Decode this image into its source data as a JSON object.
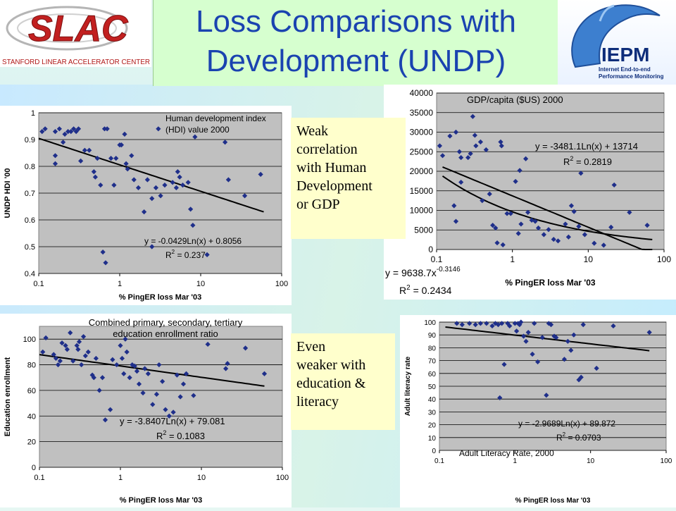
{
  "title": {
    "line1": "Loss Comparisons with",
    "line2": "Development (UNDP)"
  },
  "logo_left": {
    "wordmark": "SLAC",
    "subtitle": "STANFORD LINEAR ACCELERATOR CENTER"
  },
  "logo_right": {
    "wordmark": "IEPM",
    "subtitle_lines": [
      "Internet End-to-end",
      "Performance Monitoring"
    ]
  },
  "notes": {
    "weak": [
      "Weak",
      "correlation",
      "with Human",
      "Development",
      "or GDP"
    ],
    "weaker": [
      "Even",
      "weaker with",
      "education &",
      "literacy"
    ]
  },
  "colors": {
    "title": "#1a43b0",
    "marker": "#1f2f8a",
    "plot_bg": "#c0c0c0",
    "note_bg": "#ffffcc",
    "title_bg": "#d6ffcf"
  },
  "chart_data": [
    {
      "id": "hdi",
      "type": "scatter",
      "title": "Human development index (HDI) value 2000",
      "title_lines": [
        "Human development index",
        "(HDI) value 2000"
      ],
      "xlabel": "% PingER loss Mar '03",
      "ylabel": "UNDP HDI '00",
      "x_scale": "log",
      "xlim": [
        0.1,
        100
      ],
      "ylim": [
        0.4,
        1.0
      ],
      "x_ticks": [
        "0.1",
        "1",
        "10",
        "100"
      ],
      "y_ticks": [
        "0.4",
        "0.5",
        "0.6",
        "0.7",
        "0.8",
        "0.9",
        "1"
      ],
      "grid": true,
      "trendline": {
        "type": "log",
        "a": -0.0429,
        "b": 0.8056,
        "range": [
          0.1,
          60
        ]
      },
      "equation": "y = -0.0429Ln(x) + 0.8056",
      "r2": "R2 = 0.237",
      "points": [
        [
          0.11,
          0.93
        ],
        [
          0.12,
          0.94
        ],
        [
          0.16,
          0.93
        ],
        [
          0.16,
          0.81
        ],
        [
          0.16,
          0.84
        ],
        [
          0.18,
          0.94
        ],
        [
          0.2,
          0.89
        ],
        [
          0.21,
          0.92
        ],
        [
          0.23,
          0.93
        ],
        [
          0.25,
          0.93
        ],
        [
          0.27,
          0.94
        ],
        [
          0.29,
          0.93
        ],
        [
          0.31,
          0.94
        ],
        [
          0.33,
          0.82
        ],
        [
          0.37,
          0.86
        ],
        [
          0.42,
          0.86
        ],
        [
          0.48,
          0.78
        ],
        [
          0.5,
          0.76
        ],
        [
          0.53,
          0.83
        ],
        [
          0.58,
          0.73
        ],
        [
          0.62,
          0.48
        ],
        [
          0.65,
          0.94
        ],
        [
          0.7,
          0.94
        ],
        [
          0.78,
          0.83
        ],
        [
          0.85,
          0.73
        ],
        [
          0.9,
          0.83
        ],
        [
          1.0,
          0.88
        ],
        [
          1.05,
          0.88
        ],
        [
          1.15,
          0.92
        ],
        [
          1.2,
          0.81
        ],
        [
          1.25,
          0.79
        ],
        [
          1.4,
          0.84
        ],
        [
          1.5,
          0.75
        ],
        [
          1.7,
          0.72
        ],
        [
          2.0,
          0.63
        ],
        [
          2.2,
          0.75
        ],
        [
          2.5,
          0.68
        ],
        [
          2.8,
          0.72
        ],
        [
          3.0,
          0.94
        ],
        [
          3.2,
          0.69
        ],
        [
          3.6,
          0.73
        ],
        [
          4.5,
          0.74
        ],
        [
          5.0,
          0.72
        ],
        [
          5.5,
          0.76
        ],
        [
          5.2,
          0.78
        ],
        [
          6.0,
          0.73
        ],
        [
          7.0,
          0.74
        ],
        [
          7.5,
          0.64
        ],
        [
          8.0,
          0.58
        ],
        [
          8.5,
          0.91
        ],
        [
          12.0,
          0.47
        ],
        [
          20.0,
          0.89
        ],
        [
          22.0,
          0.75
        ],
        [
          35.0,
          0.69
        ],
        [
          55.0,
          0.77
        ],
        [
          0.67,
          0.44
        ],
        [
          2.5,
          0.5
        ]
      ]
    },
    {
      "id": "gdp",
      "type": "scatter",
      "title": "GDP/capita ($US) 2000",
      "xlabel": "% PingER loss Mar '03",
      "ylabel": "",
      "x_scale": "log",
      "xlim": [
        0.1,
        100
      ],
      "ylim": [
        0,
        40000
      ],
      "x_ticks": [
        "0.1",
        "1",
        "10",
        "100"
      ],
      "y_ticks": [
        "0",
        "5000",
        "10000",
        "15000",
        "20000",
        "25000",
        "30000",
        "35000",
        "40000"
      ],
      "grid": true,
      "trendlines": [
        {
          "type": "log",
          "a": -3481.1,
          "b": 13714,
          "range": [
            0.12,
            70
          ]
        },
        {
          "type": "power",
          "a": 9638.7,
          "b": -0.3146,
          "range": [
            0.12,
            70
          ]
        }
      ],
      "equation": "y = -3481.1Ln(x) + 13714",
      "r2": "R2 = 0.2819",
      "equation2": "y = 9638.7x",
      "equation2_exp": "-0.3146",
      "r2_2": "R2 = 0.2434",
      "points": [
        [
          0.11,
          26500
        ],
        [
          0.12,
          24000
        ],
        [
          0.15,
          29000
        ],
        [
          0.17,
          11200
        ],
        [
          0.18,
          30000
        ],
        [
          0.18,
          7200
        ],
        [
          0.2,
          25000
        ],
        [
          0.21,
          23500
        ],
        [
          0.21,
          17200
        ],
        [
          0.26,
          23500
        ],
        [
          0.28,
          24500
        ],
        [
          0.3,
          34000
        ],
        [
          0.32,
          29200
        ],
        [
          0.33,
          26500
        ],
        [
          0.38,
          27500
        ],
        [
          0.4,
          12500
        ],
        [
          0.45,
          25500
        ],
        [
          0.5,
          14200
        ],
        [
          0.55,
          6200
        ],
        [
          0.6,
          5500
        ],
        [
          0.63,
          1700
        ],
        [
          0.7,
          27500
        ],
        [
          0.72,
          26500
        ],
        [
          0.75,
          1200
        ],
        [
          0.85,
          9200
        ],
        [
          0.95,
          9200
        ],
        [
          1.1,
          17400
        ],
        [
          1.2,
          4100
        ],
        [
          1.25,
          20200
        ],
        [
          1.3,
          6500
        ],
        [
          1.5,
          23200
        ],
        [
          1.6,
          9500
        ],
        [
          1.8,
          7500
        ],
        [
          2.0,
          7200
        ],
        [
          2.2,
          5500
        ],
        [
          2.6,
          3800
        ],
        [
          3.0,
          5100
        ],
        [
          3.5,
          2600
        ],
        [
          4.0,
          2200
        ],
        [
          5.0,
          6500
        ],
        [
          5.5,
          3200
        ],
        [
          6.0,
          11200
        ],
        [
          6.5,
          9700
        ],
        [
          7.5,
          5900
        ],
        [
          8.0,
          19500
        ],
        [
          9.0,
          3800
        ],
        [
          12.0,
          1600
        ],
        [
          16.0,
          1100
        ],
        [
          20.0,
          5700
        ],
        [
          22.0,
          16500
        ],
        [
          35.0,
          9500
        ],
        [
          60.0,
          6200
        ]
      ]
    },
    {
      "id": "education",
      "type": "scatter",
      "title": "Combined primary, secondary, tertiary education enrollment ratio",
      "title_lines": [
        "Combined primary, secondary, tertiary",
        "education enrollment ratio"
      ],
      "xlabel": "% PingER loss Mar '03",
      "ylabel": "Education enrollment",
      "x_scale": "log",
      "xlim": [
        0.1,
        100
      ],
      "ylim": [
        0,
        110
      ],
      "x_ticks": [
        "0.1",
        "1",
        "10",
        "100"
      ],
      "y_ticks": [
        "0",
        "20",
        "40",
        "60",
        "80",
        "100"
      ],
      "grid": true,
      "trendline": {
        "type": "log",
        "a": -3.8407,
        "b": 79.081,
        "range": [
          0.1,
          60
        ]
      },
      "equation": "y = -3.8407Ln(x) + 79.081",
      "r2": "R2 = 0.1083",
      "points": [
        [
          0.11,
          90
        ],
        [
          0.12,
          101
        ],
        [
          0.15,
          88
        ],
        [
          0.16,
          85
        ],
        [
          0.17,
          80
        ],
        [
          0.18,
          83
        ],
        [
          0.19,
          97
        ],
        [
          0.21,
          95
        ],
        [
          0.22,
          92
        ],
        [
          0.24,
          105
        ],
        [
          0.26,
          83
        ],
        [
          0.29,
          95
        ],
        [
          0.3,
          92
        ],
        [
          0.31,
          98
        ],
        [
          0.33,
          80
        ],
        [
          0.35,
          102
        ],
        [
          0.37,
          87
        ],
        [
          0.4,
          90
        ],
        [
          0.45,
          72
        ],
        [
          0.47,
          70
        ],
        [
          0.5,
          85
        ],
        [
          0.55,
          60
        ],
        [
          0.6,
          70
        ],
        [
          0.65,
          37
        ],
        [
          0.75,
          45
        ],
        [
          0.8,
          84
        ],
        [
          0.9,
          80
        ],
        [
          1.0,
          95
        ],
        [
          1.05,
          85
        ],
        [
          1.1,
          73
        ],
        [
          1.15,
          100
        ],
        [
          1.2,
          90
        ],
        [
          1.3,
          70
        ],
        [
          1.4,
          80
        ],
        [
          1.5,
          79
        ],
        [
          1.6,
          75
        ],
        [
          1.7,
          65
        ],
        [
          1.9,
          58
        ],
        [
          2.0,
          77
        ],
        [
          2.2,
          73
        ],
        [
          2.5,
          49
        ],
        [
          2.8,
          57
        ],
        [
          3.0,
          80
        ],
        [
          3.3,
          67
        ],
        [
          3.6,
          45
        ],
        [
          4.0,
          40
        ],
        [
          4.5,
          43
        ],
        [
          5.0,
          72
        ],
        [
          5.5,
          55
        ],
        [
          6.0,
          65
        ],
        [
          6.5,
          73
        ],
        [
          8.0,
          56
        ],
        [
          12.0,
          96
        ],
        [
          20.0,
          77
        ],
        [
          21.0,
          81
        ],
        [
          35.0,
          93
        ],
        [
          60.0,
          73
        ]
      ]
    },
    {
      "id": "literacy",
      "type": "scatter",
      "title": "Adult Literacy Rate, 2000",
      "xlabel": "% PingER loss Mar '03",
      "ylabel": "Adult literacy rate",
      "x_scale": "log",
      "xlim": [
        0.1,
        100
      ],
      "ylim": [
        0,
        100
      ],
      "x_ticks": [
        "0.1",
        "1",
        "10",
        "100"
      ],
      "y_ticks": [
        "0",
        "10",
        "20",
        "30",
        "40",
        "50",
        "60",
        "70",
        "80",
        "90",
        "100"
      ],
      "grid": true,
      "trendline": {
        "type": "log",
        "a": -2.9689,
        "b": 89.872,
        "range": [
          0.12,
          60
        ]
      },
      "equation": "y = -2.9689Ln(x) + 89.872",
      "r2": "R2 = 0.0703",
      "points": [
        [
          0.17,
          99
        ],
        [
          0.2,
          98
        ],
        [
          0.25,
          99
        ],
        [
          0.3,
          98
        ],
        [
          0.35,
          99
        ],
        [
          0.42,
          99
        ],
        [
          0.5,
          97
        ],
        [
          0.55,
          99
        ],
        [
          0.6,
          98
        ],
        [
          0.63,
          41
        ],
        [
          0.67,
          99
        ],
        [
          0.72,
          67
        ],
        [
          0.8,
          99
        ],
        [
          0.85,
          97
        ],
        [
          1.0,
          99
        ],
        [
          1.05,
          93
        ],
        [
          1.1,
          99
        ],
        [
          1.15,
          98
        ],
        [
          1.2,
          100
        ],
        [
          1.3,
          89
        ],
        [
          1.4,
          85
        ],
        [
          1.5,
          92
        ],
        [
          1.7,
          75
        ],
        [
          1.8,
          99
        ],
        [
          2.0,
          69
        ],
        [
          2.3,
          88
        ],
        [
          2.6,
          43
        ],
        [
          2.8,
          99
        ],
        [
          3.0,
          98
        ],
        [
          3.3,
          89
        ],
        [
          3.5,
          88
        ],
        [
          4.5,
          71
        ],
        [
          5.0,
          85
        ],
        [
          5.5,
          78
        ],
        [
          6.0,
          90
        ],
        [
          7.0,
          55
        ],
        [
          7.5,
          57
        ],
        [
          8.0,
          98
        ],
        [
          12.0,
          64
        ],
        [
          20.0,
          97
        ],
        [
          60.0,
          92
        ]
      ]
    }
  ]
}
